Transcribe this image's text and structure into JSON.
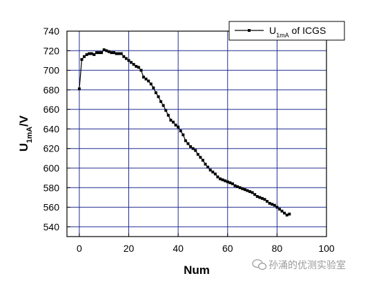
{
  "chart_data": {
    "type": "line",
    "xlabel": "Num",
    "ylabel": {
      "main": "U",
      "sub": "1mA",
      "suffix": "/V"
    },
    "xlim": [
      -5,
      100
    ],
    "ylim": [
      530,
      740
    ],
    "xticks": [
      0,
      20,
      40,
      60,
      80,
      100
    ],
    "yticks": [
      540,
      560,
      580,
      600,
      620,
      640,
      660,
      680,
      700,
      720,
      740
    ],
    "grid": true,
    "legend_position": "top-right",
    "series": [
      {
        "name": {
          "main": "U",
          "sub": "1mA",
          "suffix": " of ICGS"
        },
        "color": "#000000",
        "marker": "square",
        "x": [
          0,
          1,
          2,
          3,
          4,
          5,
          6,
          7,
          8,
          9,
          10,
          11,
          12,
          13,
          14,
          15,
          16,
          17,
          18,
          19,
          20,
          21,
          22,
          23,
          24,
          25,
          26,
          27,
          28,
          29,
          30,
          31,
          32,
          33,
          34,
          35,
          36,
          37,
          38,
          39,
          40,
          41,
          42,
          43,
          44,
          45,
          46,
          47,
          48,
          49,
          50,
          51,
          52,
          53,
          54,
          55,
          56,
          57,
          58,
          59,
          60,
          61,
          62,
          63,
          64,
          65,
          66,
          67,
          68,
          69,
          70,
          71,
          72,
          73,
          74,
          75,
          76,
          77,
          78,
          79,
          80,
          81,
          82,
          83,
          84,
          85
        ],
        "y": [
          681,
          711,
          714,
          716,
          717,
          717,
          716,
          718,
          718,
          718,
          721,
          720,
          719,
          718,
          718,
          717,
          717,
          717,
          714,
          712,
          710,
          708,
          706,
          704,
          703,
          700,
          693,
          691,
          689,
          686,
          682,
          677,
          673,
          668,
          664,
          659,
          654,
          649,
          647,
          644,
          642,
          638,
          634,
          628,
          625,
          622,
          620,
          618,
          614,
          611,
          608,
          604,
          601,
          598,
          596,
          594,
          591,
          589,
          588,
          587,
          586,
          585,
          584,
          582,
          581,
          580,
          579,
          578,
          577,
          576,
          575,
          573,
          571,
          570,
          569,
          568,
          566,
          564,
          563,
          562,
          560,
          558,
          556,
          554,
          552,
          553
        ]
      }
    ]
  },
  "watermark": {
    "text": "孙涌的优测实验室"
  }
}
